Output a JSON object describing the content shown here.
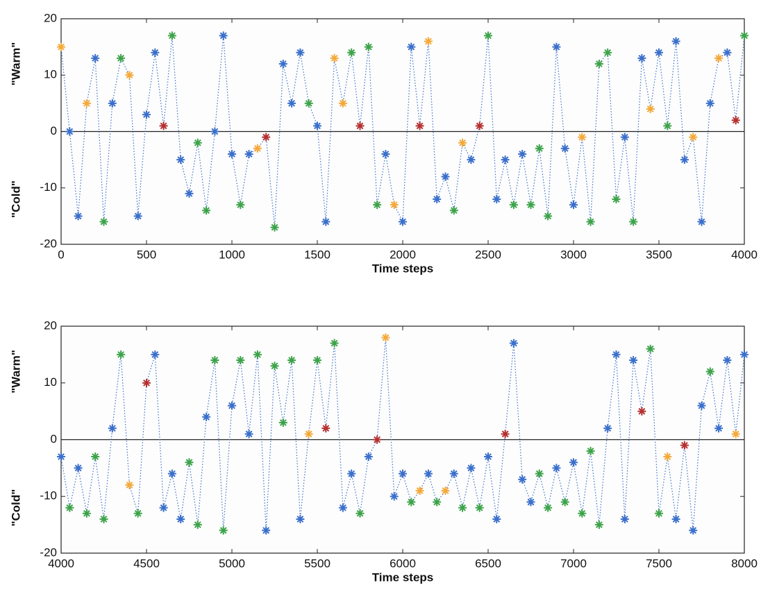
{
  "chart_data": [
    {
      "type": "line",
      "xlabel": "Time steps",
      "y_label_top": "\"Warm\"",
      "y_label_bottom": "\"Cold\"",
      "xlim": [
        0,
        4000
      ],
      "ylim": [
        -20,
        20
      ],
      "xticks": [
        0,
        500,
        1000,
        1500,
        2000,
        2500,
        3000,
        3500,
        4000
      ],
      "yticks": [
        -20,
        -10,
        0,
        10,
        20
      ],
      "zero_line": true,
      "line_color": "#3a6fcb",
      "x": [
        0,
        50,
        100,
        150,
        200,
        250,
        300,
        350,
        400,
        450,
        500,
        550,
        600,
        650,
        700,
        750,
        800,
        850,
        900,
        950,
        1000,
        1050,
        1100,
        1150,
        1200,
        1250,
        1300,
        1350,
        1400,
        1450,
        1500,
        1550,
        1600,
        1650,
        1700,
        1750,
        1800,
        1850,
        1900,
        1950,
        2000,
        2050,
        2100,
        2150,
        2200,
        2250,
        2300,
        2350,
        2400,
        2450,
        2500,
        2550,
        2600,
        2650,
        2700,
        2750,
        2800,
        2850,
        2900,
        2950,
        3000,
        3050,
        3100,
        3150,
        3200,
        3250,
        3300,
        3350,
        3400,
        3450,
        3500,
        3550,
        3600,
        3650,
        3700,
        3750,
        3800,
        3850,
        3900,
        3950,
        4000
      ],
      "values": [
        15,
        0,
        -15,
        5,
        13,
        -16,
        5,
        13,
        10,
        -15,
        3,
        14,
        1,
        17,
        -5,
        -11,
        -2,
        -14,
        0,
        17,
        -4,
        -13,
        -4,
        -3,
        -1,
        -17,
        12,
        5,
        14,
        5,
        1,
        -16,
        13,
        5,
        14,
        1,
        15,
        -13,
        -4,
        -13,
        -16,
        15,
        1,
        16,
        -12,
        -8,
        -14,
        -2,
        -5,
        1,
        17,
        -12,
        -5,
        -13,
        -4,
        -13,
        -3,
        -15,
        15,
        -3,
        -13,
        -1,
        -16,
        12,
        14,
        -12,
        -1,
        -16,
        13,
        4,
        14,
        1,
        16,
        -5,
        -1,
        -16,
        5,
        13,
        14,
        2,
        17
      ],
      "marker_colors": [
        "#f4a93a",
        "#3a6fcb",
        "#3a6fcb",
        "#f4a93a",
        "#3a6fcb",
        "#3da34a",
        "#3a6fcb",
        "#3da34a",
        "#f4a93a",
        "#3a6fcb",
        "#3a6fcb",
        "#3a6fcb",
        "#b53030",
        "#3da34a",
        "#3a6fcb",
        "#3a6fcb",
        "#3da34a",
        "#3da34a",
        "#3a6fcb",
        "#3a6fcb",
        "#3a6fcb",
        "#3da34a",
        "#3a6fcb",
        "#f4a93a",
        "#b53030",
        "#3da34a",
        "#3a6fcb",
        "#3a6fcb",
        "#3a6fcb",
        "#3da34a",
        "#3a6fcb",
        "#3a6fcb",
        "#f4a93a",
        "#f4a93a",
        "#3da34a",
        "#b53030",
        "#3da34a",
        "#3da34a",
        "#3a6fcb",
        "#f4a93a",
        "#3a6fcb",
        "#3a6fcb",
        "#b53030",
        "#f4a93a",
        "#3a6fcb",
        "#3a6fcb",
        "#3da34a",
        "#f4a93a",
        "#3a6fcb",
        "#b53030",
        "#3da34a",
        "#3a6fcb",
        "#3a6fcb",
        "#3da34a",
        "#3a6fcb",
        "#3da34a",
        "#3da34a",
        "#3da34a",
        "#3a6fcb",
        "#3a6fcb",
        "#3a6fcb",
        "#f4a93a",
        "#3da34a",
        "#3da34a",
        "#3da34a",
        "#3da34a",
        "#3a6fcb",
        "#3da34a",
        "#3a6fcb",
        "#f4a93a",
        "#3a6fcb",
        "#3da34a",
        "#3a6fcb",
        "#3a6fcb",
        "#f4a93a",
        "#3a6fcb",
        "#3a6fcb",
        "#f4a93a",
        "#3a6fcb",
        "#b53030",
        "#3da34a"
      ]
    },
    {
      "type": "line",
      "xlabel": "Time steps",
      "y_label_top": "\"Warm\"",
      "y_label_bottom": "\"Cold\"",
      "xlim": [
        4000,
        8000
      ],
      "ylim": [
        -20,
        20
      ],
      "xticks": [
        4000,
        4500,
        5000,
        5500,
        6000,
        6500,
        7000,
        7500,
        8000
      ],
      "yticks": [
        -20,
        -10,
        0,
        10,
        20
      ],
      "zero_line": true,
      "line_color": "#3a6fcb",
      "x": [
        4000,
        4050,
        4100,
        4150,
        4200,
        4250,
        4300,
        4350,
        4400,
        4450,
        4500,
        4550,
        4600,
        4650,
        4700,
        4750,
        4800,
        4850,
        4900,
        4950,
        5000,
        5050,
        5100,
        5150,
        5200,
        5250,
        5300,
        5350,
        5400,
        5450,
        5500,
        5550,
        5600,
        5650,
        5700,
        5750,
        5800,
        5850,
        5900,
        5950,
        6000,
        6050,
        6100,
        6150,
        6200,
        6250,
        6300,
        6350,
        6400,
        6450,
        6500,
        6550,
        6600,
        6650,
        6700,
        6750,
        6800,
        6850,
        6900,
        6950,
        7000,
        7050,
        7100,
        7150,
        7200,
        7250,
        7300,
        7350,
        7400,
        7450,
        7500,
        7550,
        7600,
        7650,
        7700,
        7750,
        7800,
        7850,
        7900,
        7950,
        8000
      ],
      "values": [
        -3,
        -12,
        -5,
        -13,
        -3,
        -14,
        2,
        15,
        -8,
        -13,
        10,
        15,
        -12,
        -6,
        -14,
        -4,
        -15,
        4,
        14,
        -16,
        6,
        14,
        1,
        15,
        -16,
        13,
        3,
        14,
        -14,
        1,
        14,
        2,
        17,
        -12,
        -6,
        -13,
        -3,
        0,
        18,
        -10,
        -6,
        -11,
        -9,
        -6,
        -11,
        -9,
        -6,
        -12,
        -5,
        -12,
        -3,
        -14,
        1,
        17,
        -7,
        -11,
        -6,
        -12,
        -5,
        -11,
        -4,
        -13,
        -2,
        -15,
        2,
        15,
        -14,
        14,
        5,
        16,
        -13,
        -3,
        -14,
        -1,
        -16,
        6,
        12,
        2,
        14,
        1,
        15
      ],
      "marker_colors": [
        "#3a6fcb",
        "#3da34a",
        "#3a6fcb",
        "#3da34a",
        "#3da34a",
        "#3da34a",
        "#3a6fcb",
        "#3da34a",
        "#f4a93a",
        "#3da34a",
        "#b53030",
        "#3a6fcb",
        "#3a6fcb",
        "#3a6fcb",
        "#3a6fcb",
        "#3da34a",
        "#3da34a",
        "#3a6fcb",
        "#3da34a",
        "#3da34a",
        "#3a6fcb",
        "#3da34a",
        "#3a6fcb",
        "#3da34a",
        "#3a6fcb",
        "#3da34a",
        "#3da34a",
        "#3da34a",
        "#3a6fcb",
        "#f4a93a",
        "#3da34a",
        "#b53030",
        "#3da34a",
        "#3a6fcb",
        "#3a6fcb",
        "#3da34a",
        "#3a6fcb",
        "#b53030",
        "#f4a93a",
        "#3a6fcb",
        "#3a6fcb",
        "#3da34a",
        "#f4a93a",
        "#3a6fcb",
        "#3da34a",
        "#f4a93a",
        "#3a6fcb",
        "#3da34a",
        "#3a6fcb",
        "#3da34a",
        "#3a6fcb",
        "#3a6fcb",
        "#b53030",
        "#3a6fcb",
        "#3a6fcb",
        "#3a6fcb",
        "#3da34a",
        "#3da34a",
        "#3a6fcb",
        "#3da34a",
        "#3a6fcb",
        "#3da34a",
        "#3da34a",
        "#3da34a",
        "#3a6fcb",
        "#3a6fcb",
        "#3a6fcb",
        "#3a6fcb",
        "#b53030",
        "#3da34a",
        "#3da34a",
        "#f4a93a",
        "#3a6fcb",
        "#b53030",
        "#3a6fcb",
        "#3a6fcb",
        "#3da34a",
        "#3a6fcb",
        "#3a6fcb",
        "#f4a93a",
        "#3a6fcb"
      ]
    }
  ]
}
